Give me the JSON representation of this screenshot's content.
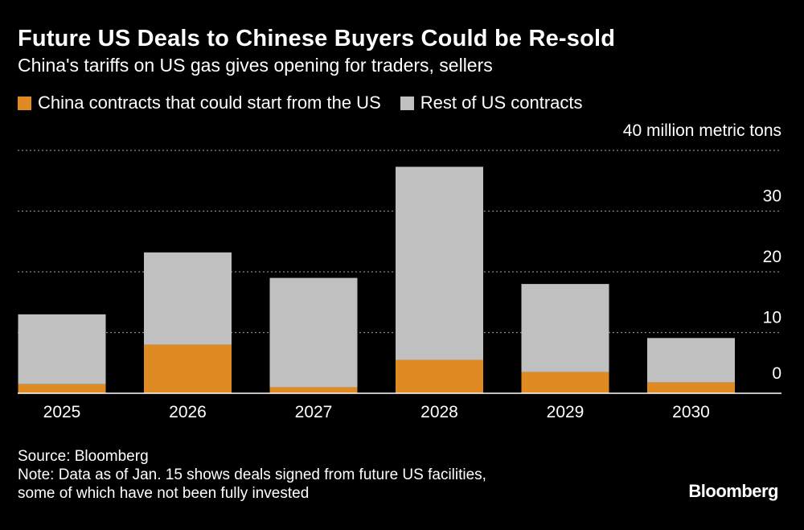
{
  "header": {
    "title": "Future US Deals to Chinese Buyers Could be Re-sold",
    "subtitle": "China's tariffs on US gas gives opening for traders, sellers"
  },
  "legend": {
    "series_1": "China contracts that could start from the US",
    "series_2": "Rest of US contracts"
  },
  "colors": {
    "china": "#e08a24",
    "rest": "#c0c0c0",
    "grid": "#888888",
    "background": "#000000"
  },
  "chart_data": {
    "type": "bar",
    "stacked": true,
    "title": "Future US Deals to Chinese Buyers Could be Re-sold",
    "subtitle": "China's tariffs on US gas gives opening for traders, sellers",
    "ylabel": "million metric tons",
    "y_top_label": "40 million metric tons",
    "ylim": [
      0,
      40
    ],
    "yticks": [
      0,
      10,
      20,
      30,
      40
    ],
    "ytick_labels": [
      "0",
      "10",
      "20",
      "30",
      "40 million metric tons"
    ],
    "categories": [
      "2025",
      "2026",
      "2027",
      "2028",
      "2029",
      "2030"
    ],
    "series": [
      {
        "name": "China contracts that could start from the US",
        "values": [
          1.5,
          8.0,
          1.0,
          5.5,
          3.5,
          1.8
        ]
      },
      {
        "name": "Rest of US contracts",
        "values": [
          11.5,
          15.2,
          18.0,
          31.8,
          14.5,
          7.3
        ]
      }
    ],
    "grid": true,
    "legend_position": "top-left"
  },
  "footer": {
    "source": "Source: Bloomberg",
    "note_line1": "Note: Data as of Jan. 15 shows deals signed from future US facilities,",
    "note_line2": "some of which have not been fully invested",
    "brand": "Bloomberg"
  }
}
